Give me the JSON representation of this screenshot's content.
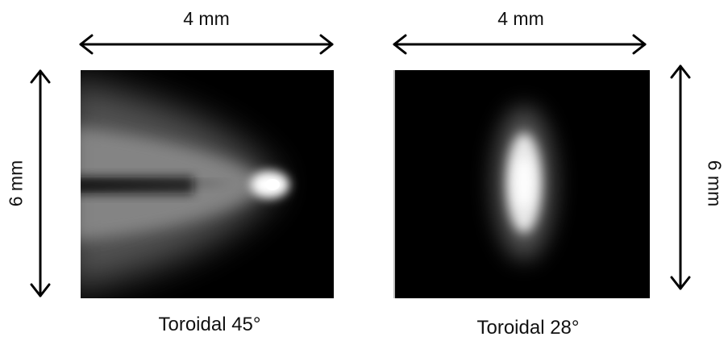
{
  "figure": {
    "left_panel": {
      "width_label": "4 mm",
      "height_label": "6 mm",
      "caption": "Toroidal 45°"
    },
    "right_panel": {
      "width_label": "4 mm",
      "height_label": "6 mm",
      "caption": "Toroidal 28°"
    },
    "colors": {
      "background": "#ffffff",
      "panel": "#000000",
      "arrow": "#000000",
      "text": "#111111"
    }
  }
}
